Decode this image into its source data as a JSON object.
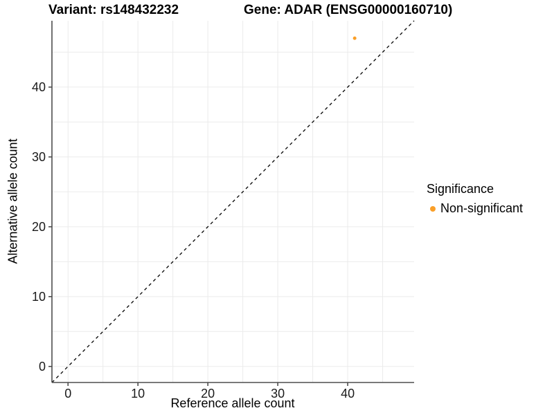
{
  "titles": {
    "variant": "Variant: rs148432232",
    "gene": "Gene: ADAR (ENSG00000160710)"
  },
  "legend": {
    "title": "Significance",
    "items": [
      {
        "label": "Non-significant",
        "color": "#FA9F28"
      }
    ]
  },
  "chart_data": {
    "type": "scatter",
    "title": "Variant: rs148432232 — Gene: ADAR (ENSG00000160710)",
    "xlabel": "Reference allele count",
    "ylabel": "Alternative allele count",
    "xlim": [
      -2.3,
      49.5
    ],
    "ylim": [
      -2.3,
      49.5
    ],
    "xticks": [
      0,
      10,
      20,
      30,
      40
    ],
    "yticks": [
      0,
      10,
      20,
      30,
      40
    ],
    "grid_step": 5,
    "grid_on": true,
    "legend_position": "right",
    "series": [
      {
        "name": "Non-significant",
        "color": "#FA9F28",
        "points": [
          {
            "x": 41,
            "y": 47
          }
        ]
      }
    ],
    "reference_line": {
      "type": "identity",
      "slope": 1,
      "intercept": 0,
      "style": "dashed",
      "color": "#000000"
    },
    "colors": {
      "grid": "#EBEBEB",
      "axis": "#4D4D4D",
      "tick_text": "#1A1A1A",
      "background": "#FFFFFF"
    }
  }
}
